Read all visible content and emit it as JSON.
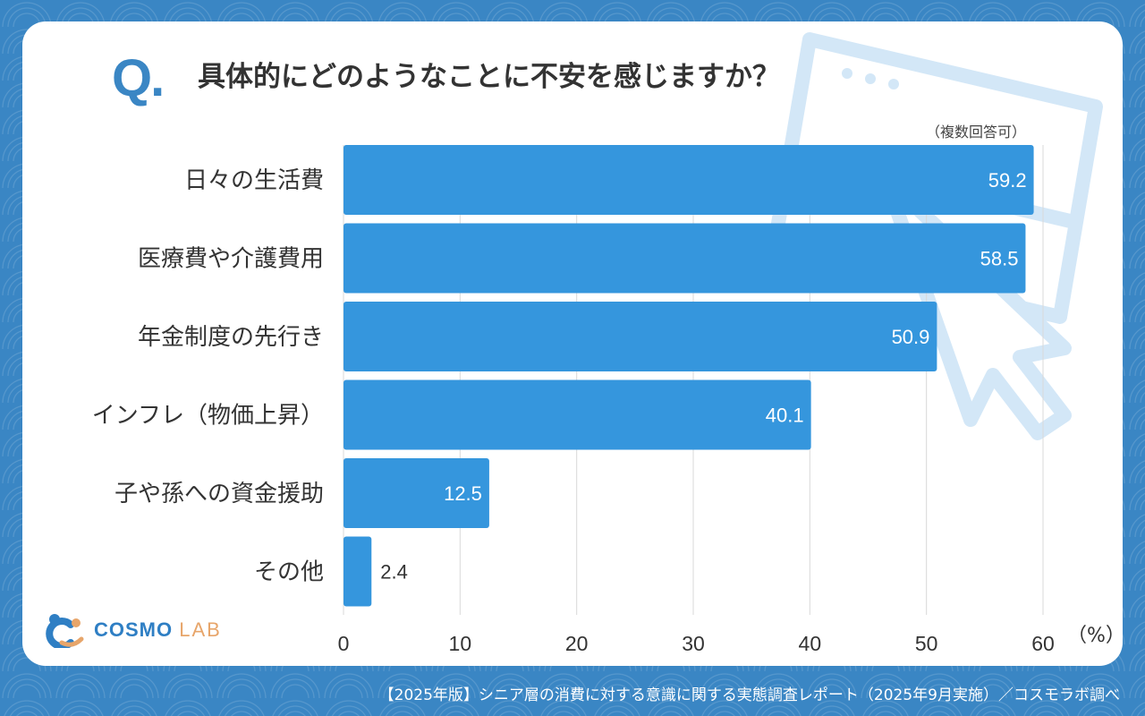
{
  "question": {
    "mark": "Q",
    "mark_dot": ".",
    "text": "具体的にどのようなことに不安を感じますか？"
  },
  "note": "（複数回答可）",
  "chart_data": {
    "type": "bar",
    "orientation": "horizontal",
    "categories": [
      "日々の生活費",
      "医療費や介護費用",
      "年金制度の先行き",
      "インフレ（物価上昇）",
      "子や孫への資金援助",
      "その他"
    ],
    "values": [
      59.2,
      58.5,
      50.9,
      40.1,
      12.5,
      2.4
    ],
    "value_labels": [
      "59.2",
      "58.5",
      "50.9",
      "40.1",
      "12.5",
      "2.4"
    ],
    "xlim": [
      0,
      60
    ],
    "ticks": [
      "0",
      "10",
      "20",
      "30",
      "40",
      "50",
      "60"
    ],
    "unit": "（%）",
    "bar_color": "#3596dd",
    "grid": true
  },
  "logo": {
    "name": "COSMO",
    "suffix": "LAB"
  },
  "footer": "【2025年版】シニア層の消費に対する意識に関する実態調査レポート（2025年9月実施）／コスモラボ調べ"
}
